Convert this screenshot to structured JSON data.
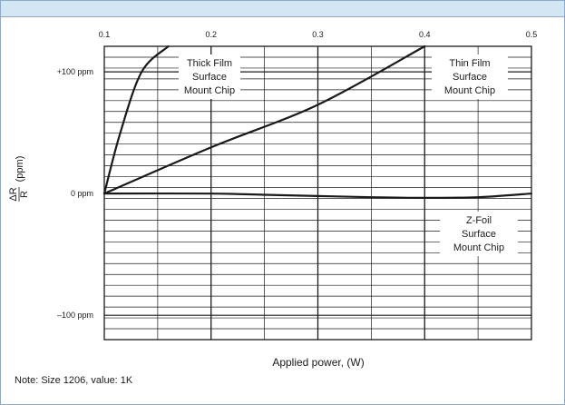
{
  "chart_data": {
    "type": "line",
    "x_tick_labels": [
      "0.1",
      "0.2",
      "0.3",
      "0.4",
      "0.5"
    ],
    "xlim": [
      0.1,
      0.5
    ],
    "y_tick_labels": [
      {
        "value": 100,
        "label": "+100 ppm"
      },
      {
        "value": 0,
        "label": "0 ppm"
      },
      {
        "value": -100,
        "label": "–100 ppm"
      }
    ],
    "ylim": [
      -120,
      121
    ],
    "xlabel": "Applied power, (W)",
    "ylabel_fraction": {
      "numerator": "ΔR",
      "denominator": "R"
    },
    "ylabel_unit": "(ppm)",
    "grid": true,
    "series": [
      {
        "name": "Thick Film Surface Mount Chip",
        "label_lines": [
          "Thick Film",
          "Surface",
          "Mount Chip"
        ],
        "x": [
          0.1,
          0.115,
          0.135,
          0.16
        ],
        "y": [
          0,
          50,
          100,
          121
        ],
        "color": "#1a1a1a"
      },
      {
        "name": "Thin Film Surface Mount Chip",
        "label_lines": [
          "Thin Film",
          "Surface",
          "Mount Chip"
        ],
        "x": [
          0.1,
          0.2,
          0.3,
          0.4
        ],
        "y": [
          0,
          38,
          73,
          121
        ],
        "color": "#1a1a1a"
      },
      {
        "name": "Z-Foil Surface Mount Chip",
        "label_lines": [
          "Z-Foil",
          "Surface",
          "Mount Chip"
        ],
        "x": [
          0.1,
          0.2,
          0.25,
          0.3,
          0.35,
          0.4,
          0.45,
          0.5
        ],
        "y": [
          0,
          0,
          -1,
          -2,
          -3,
          -3.5,
          -3,
          0
        ],
        "color": "#1a1a1a"
      }
    ]
  },
  "note": "Note: Size 1206, value: 1K"
}
